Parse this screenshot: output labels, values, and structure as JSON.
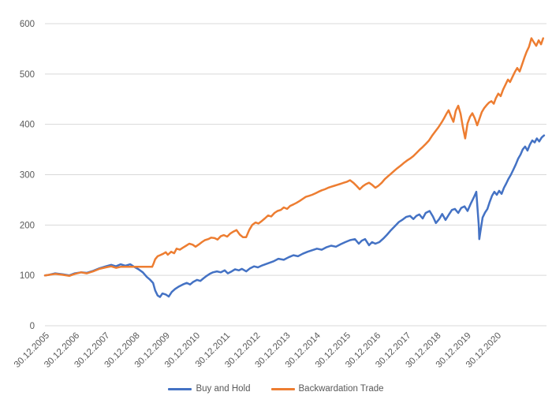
{
  "chart_data": {
    "type": "line",
    "title": "",
    "xlabel": "",
    "ylabel": "",
    "grid": true,
    "legend_position": "bottom",
    "background": "#ffffff",
    "gridline_color": "#d9d9d9",
    "axis_text_color": "#595959",
    "y_axis": {
      "min": 0,
      "max": 600,
      "ticks": [
        0,
        100,
        200,
        300,
        400,
        500,
        600
      ]
    },
    "x_axis": {
      "t_max": 16.65,
      "tick_interval_years": 1
    },
    "x_labels": [
      "30.12.2005",
      "30.12.2006",
      "30.12.2007",
      "30.12.2008",
      "30.12.2009",
      "30.12.2010",
      "30.12.2011",
      "30.12.2012",
      "30.12.2013",
      "30.12.2014",
      "30.12.2015",
      "30.12.2016",
      "30.12.2017",
      "30.12.2018",
      "30.12.2019",
      "30.12.2020"
    ],
    "series": [
      {
        "name": "Buy and Hold",
        "color": "#4472C4",
        "points": [
          [
            0,
            100
          ],
          [
            0.13,
            101
          ],
          [
            0.34,
            104
          ],
          [
            0.6,
            102
          ],
          [
            0.81,
            100
          ],
          [
            0.99,
            104
          ],
          [
            1.2,
            106
          ],
          [
            1.39,
            105
          ],
          [
            1.6,
            109
          ],
          [
            1.81,
            114
          ],
          [
            2.02,
            118
          ],
          [
            2.2,
            121
          ],
          [
            2.36,
            118
          ],
          [
            2.51,
            122
          ],
          [
            2.67,
            119
          ],
          [
            2.83,
            122
          ],
          [
            2.96,
            117
          ],
          [
            3.11,
            112
          ],
          [
            3.25,
            106
          ],
          [
            3.38,
            97
          ],
          [
            3.48,
            92
          ],
          [
            3.59,
            85
          ],
          [
            3.66,
            70
          ],
          [
            3.74,
            60
          ],
          [
            3.82,
            57
          ],
          [
            3.9,
            64
          ],
          [
            4.01,
            62
          ],
          [
            4.11,
            58
          ],
          [
            4.21,
            67
          ],
          [
            4.32,
            73
          ],
          [
            4.45,
            78
          ],
          [
            4.58,
            82
          ],
          [
            4.71,
            85
          ],
          [
            4.82,
            82
          ],
          [
            4.92,
            87
          ],
          [
            5.05,
            91
          ],
          [
            5.16,
            89
          ],
          [
            5.26,
            94
          ],
          [
            5.37,
            99
          ],
          [
            5.47,
            103
          ],
          [
            5.58,
            106
          ],
          [
            5.71,
            108
          ],
          [
            5.84,
            106
          ],
          [
            5.97,
            110
          ],
          [
            6.07,
            104
          ],
          [
            6.2,
            108
          ],
          [
            6.31,
            112
          ],
          [
            6.44,
            110
          ],
          [
            6.54,
            113
          ],
          [
            6.68,
            108
          ],
          [
            6.81,
            114
          ],
          [
            6.94,
            118
          ],
          [
            7.07,
            116
          ],
          [
            7.22,
            120
          ],
          [
            7.41,
            124
          ],
          [
            7.59,
            128
          ],
          [
            7.75,
            133
          ],
          [
            7.93,
            131
          ],
          [
            8.09,
            136
          ],
          [
            8.25,
            140
          ],
          [
            8.4,
            138
          ],
          [
            8.56,
            143
          ],
          [
            8.72,
            147
          ],
          [
            8.87,
            150
          ],
          [
            9.03,
            153
          ],
          [
            9.19,
            151
          ],
          [
            9.35,
            156
          ],
          [
            9.5,
            159
          ],
          [
            9.66,
            157
          ],
          [
            9.82,
            162
          ],
          [
            9.97,
            166
          ],
          [
            10.13,
            170
          ],
          [
            10.29,
            172
          ],
          [
            10.42,
            163
          ],
          [
            10.52,
            169
          ],
          [
            10.63,
            172
          ],
          [
            10.76,
            160
          ],
          [
            10.86,
            166
          ],
          [
            10.97,
            163
          ],
          [
            11.1,
            166
          ],
          [
            11.23,
            173
          ],
          [
            11.36,
            181
          ],
          [
            11.49,
            190
          ],
          [
            11.62,
            198
          ],
          [
            11.75,
            206
          ],
          [
            11.88,
            211
          ],
          [
            11.99,
            216
          ],
          [
            12.12,
            218
          ],
          [
            12.23,
            212
          ],
          [
            12.33,
            218
          ],
          [
            12.43,
            221
          ],
          [
            12.54,
            213
          ],
          [
            12.64,
            224
          ],
          [
            12.77,
            228
          ],
          [
            12.88,
            217
          ],
          [
            12.98,
            204
          ],
          [
            13.09,
            212
          ],
          [
            13.19,
            222
          ],
          [
            13.3,
            210
          ],
          [
            13.4,
            220
          ],
          [
            13.51,
            230
          ],
          [
            13.61,
            232
          ],
          [
            13.72,
            224
          ],
          [
            13.82,
            234
          ],
          [
            13.93,
            237
          ],
          [
            14.03,
            228
          ],
          [
            14.14,
            243
          ],
          [
            14.24,
            255
          ],
          [
            14.32,
            266
          ],
          [
            14.4,
            200
          ],
          [
            14.42,
            172
          ],
          [
            14.45,
            185
          ],
          [
            14.53,
            215
          ],
          [
            14.61,
            225
          ],
          [
            14.69,
            232
          ],
          [
            14.76,
            245
          ],
          [
            14.84,
            258
          ],
          [
            14.92,
            266
          ],
          [
            15,
            260
          ],
          [
            15.08,
            268
          ],
          [
            15.16,
            262
          ],
          [
            15.24,
            274
          ],
          [
            15.31,
            282
          ],
          [
            15.39,
            292
          ],
          [
            15.47,
            300
          ],
          [
            15.55,
            310
          ],
          [
            15.63,
            320
          ],
          [
            15.71,
            332
          ],
          [
            15.79,
            340
          ],
          [
            15.86,
            350
          ],
          [
            15.94,
            356
          ],
          [
            16.02,
            348
          ],
          [
            16.1,
            360
          ],
          [
            16.18,
            368
          ],
          [
            16.26,
            364
          ],
          [
            16.33,
            372
          ],
          [
            16.41,
            366
          ],
          [
            16.49,
            374
          ],
          [
            16.57,
            378
          ]
        ]
      },
      {
        "name": "Backwardation Trade",
        "color": "#ED7D31",
        "points": [
          [
            0,
            100
          ],
          [
            0.13,
            101
          ],
          [
            0.34,
            103
          ],
          [
            0.6,
            101
          ],
          [
            0.81,
            99
          ],
          [
            0.99,
            103
          ],
          [
            1.2,
            106
          ],
          [
            1.39,
            104
          ],
          [
            1.6,
            108
          ],
          [
            1.81,
            113
          ],
          [
            2.02,
            116
          ],
          [
            2.2,
            118
          ],
          [
            2.36,
            115
          ],
          [
            2.51,
            117
          ],
          [
            2.64,
            117
          ],
          [
            2.83,
            117
          ],
          [
            3.01,
            117
          ],
          [
            3.22,
            117
          ],
          [
            3.4,
            117
          ],
          [
            3.56,
            117
          ],
          [
            3.61,
            124
          ],
          [
            3.66,
            132
          ],
          [
            3.74,
            138
          ],
          [
            3.82,
            140
          ],
          [
            3.93,
            143
          ],
          [
            4.01,
            146
          ],
          [
            4.08,
            141
          ],
          [
            4.19,
            147
          ],
          [
            4.29,
            144
          ],
          [
            4.37,
            153
          ],
          [
            4.48,
            151
          ],
          [
            4.58,
            155
          ],
          [
            4.69,
            159
          ],
          [
            4.79,
            163
          ],
          [
            4.9,
            161
          ],
          [
            5,
            157
          ],
          [
            5.1,
            161
          ],
          [
            5.21,
            166
          ],
          [
            5.31,
            170
          ],
          [
            5.42,
            172
          ],
          [
            5.52,
            175
          ],
          [
            5.63,
            174
          ],
          [
            5.73,
            171
          ],
          [
            5.84,
            178
          ],
          [
            5.94,
            180
          ],
          [
            6.05,
            177
          ],
          [
            6.15,
            183
          ],
          [
            6.26,
            187
          ],
          [
            6.36,
            190
          ],
          [
            6.47,
            181
          ],
          [
            6.57,
            176
          ],
          [
            6.68,
            176
          ],
          [
            6.78,
            190
          ],
          [
            6.88,
            200
          ],
          [
            6.99,
            205
          ],
          [
            7.09,
            203
          ],
          [
            7.2,
            208
          ],
          [
            7.3,
            213
          ],
          [
            7.41,
            219
          ],
          [
            7.51,
            217
          ],
          [
            7.62,
            224
          ],
          [
            7.72,
            228
          ],
          [
            7.83,
            230
          ],
          [
            7.93,
            235
          ],
          [
            8.04,
            232
          ],
          [
            8.14,
            238
          ],
          [
            8.25,
            241
          ],
          [
            8.35,
            244
          ],
          [
            8.46,
            248
          ],
          [
            8.56,
            252
          ],
          [
            8.66,
            256
          ],
          [
            8.77,
            258
          ],
          [
            8.87,
            260
          ],
          [
            8.98,
            263
          ],
          [
            9.08,
            266
          ],
          [
            9.19,
            269
          ],
          [
            9.29,
            271
          ],
          [
            9.4,
            274
          ],
          [
            9.5,
            276
          ],
          [
            9.61,
            278
          ],
          [
            9.71,
            280
          ],
          [
            9.82,
            282
          ],
          [
            9.92,
            284
          ],
          [
            10.03,
            286
          ],
          [
            10.13,
            289
          ],
          [
            10.24,
            284
          ],
          [
            10.34,
            278
          ],
          [
            10.45,
            271
          ],
          [
            10.55,
            277
          ],
          [
            10.65,
            281
          ],
          [
            10.76,
            284
          ],
          [
            10.86,
            280
          ],
          [
            10.97,
            274
          ],
          [
            11.07,
            278
          ],
          [
            11.18,
            284
          ],
          [
            11.28,
            291
          ],
          [
            11.39,
            297
          ],
          [
            11.49,
            302
          ],
          [
            11.6,
            308
          ],
          [
            11.7,
            313
          ],
          [
            11.81,
            318
          ],
          [
            11.91,
            323
          ],
          [
            12.02,
            328
          ],
          [
            12.12,
            332
          ],
          [
            12.23,
            337
          ],
          [
            12.33,
            343
          ],
          [
            12.43,
            349
          ],
          [
            12.54,
            355
          ],
          [
            12.64,
            361
          ],
          [
            12.75,
            368
          ],
          [
            12.85,
            377
          ],
          [
            12.96,
            386
          ],
          [
            13.06,
            394
          ],
          [
            13.17,
            404
          ],
          [
            13.25,
            412
          ],
          [
            13.32,
            420
          ],
          [
            13.4,
            428
          ],
          [
            13.48,
            416
          ],
          [
            13.56,
            405
          ],
          [
            13.64,
            427
          ],
          [
            13.72,
            437
          ],
          [
            13.8,
            421
          ],
          [
            13.87,
            396
          ],
          [
            13.95,
            372
          ],
          [
            14.03,
            402
          ],
          [
            14.11,
            415
          ],
          [
            14.19,
            422
          ],
          [
            14.27,
            412
          ],
          [
            14.35,
            398
          ],
          [
            14.42,
            410
          ],
          [
            14.5,
            424
          ],
          [
            14.58,
            432
          ],
          [
            14.66,
            438
          ],
          [
            14.74,
            443
          ],
          [
            14.82,
            446
          ],
          [
            14.9,
            441
          ],
          [
            14.97,
            452
          ],
          [
            15.05,
            461
          ],
          [
            15.13,
            456
          ],
          [
            15.21,
            469
          ],
          [
            15.29,
            479
          ],
          [
            15.37,
            489
          ],
          [
            15.44,
            484
          ],
          [
            15.52,
            494
          ],
          [
            15.6,
            504
          ],
          [
            15.68,
            512
          ],
          [
            15.76,
            505
          ],
          [
            15.84,
            519
          ],
          [
            15.92,
            533
          ],
          [
            15.99,
            544
          ],
          [
            16.07,
            554
          ],
          [
            16.15,
            571
          ],
          [
            16.23,
            563
          ],
          [
            16.31,
            556
          ],
          [
            16.39,
            567
          ],
          [
            16.47,
            559
          ],
          [
            16.54,
            571
          ]
        ]
      }
    ]
  }
}
